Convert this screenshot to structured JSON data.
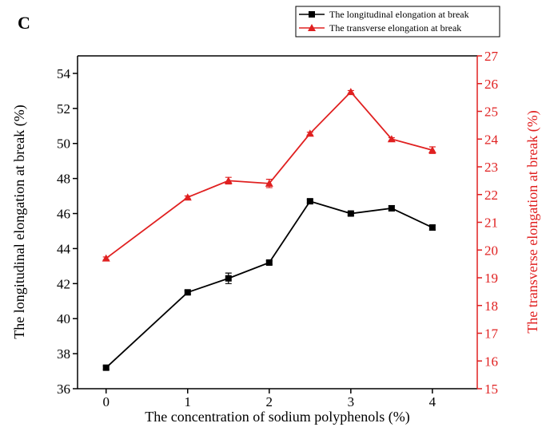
{
  "chart_data": {
    "type": "line",
    "panel_label": "C",
    "x_label": "The concentration of sodium polyphenols (%)",
    "y_label": "The longitudinal elongation at break (%)",
    "y2_label": "The transverse elongation at break (%)",
    "x": [
      0,
      1,
      1.5,
      2,
      2.5,
      3,
      3.5,
      4
    ],
    "xlim": [
      -0.35,
      4.55
    ],
    "xticks": [
      0,
      1,
      2,
      3,
      4
    ],
    "ylim": [
      36,
      55
    ],
    "yticks": [
      36,
      38,
      40,
      42,
      44,
      46,
      48,
      50,
      52,
      54
    ],
    "y2lim": [
      15,
      27
    ],
    "y2ticks": [
      15,
      16,
      17,
      18,
      19,
      20,
      21,
      22,
      23,
      24,
      25,
      26,
      27
    ],
    "y2color": "#e02020",
    "legend": "upper right",
    "series": [
      {
        "name": "The longitudinal elongation at break",
        "color": "#000000",
        "marker": "square",
        "values": [
          37.2,
          41.5,
          42.3,
          43.2,
          46.7,
          46.0,
          46.3,
          45.2
        ],
        "errors": [
          0.1,
          0.1,
          0.3,
          0.1,
          0.1,
          0.1,
          0.15,
          0.15
        ]
      },
      {
        "name": "The transverse elongation at break",
        "color": "#e02020",
        "marker": "triangle",
        "axis": "y2",
        "values": [
          19.7,
          21.9,
          22.5,
          22.4,
          24.2,
          25.7,
          24.0,
          23.6
        ],
        "errors": [
          0.05,
          0.05,
          0.12,
          0.15,
          0.05,
          0.05,
          0.05,
          0.12
        ]
      }
    ]
  }
}
